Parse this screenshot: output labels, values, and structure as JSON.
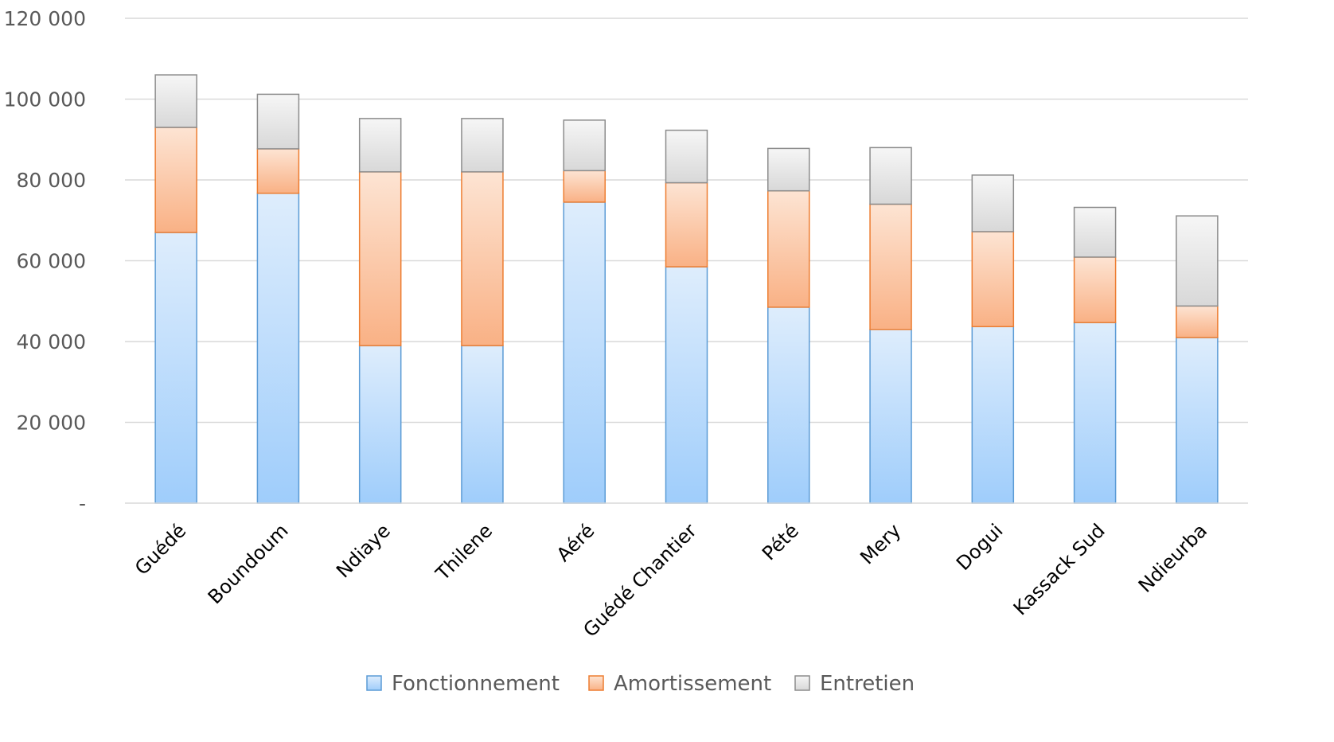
{
  "chart_data": {
    "type": "bar",
    "stacked": true,
    "categories": [
      "Guédé",
      "Boundoum",
      "Ndiaye",
      "Thilene",
      "Aéré",
      "Guédé Chantier",
      "Pété",
      "Mery",
      "Dogui",
      "Kassack Sud",
      "Ndieurba"
    ],
    "series": [
      {
        "name": "Fonctionnement",
        "values": [
          67000,
          76700,
          39000,
          39000,
          74500,
          58500,
          48500,
          43000,
          43700,
          44700,
          41000
        ]
      },
      {
        "name": "Amortissement",
        "values": [
          26000,
          11000,
          43000,
          43000,
          7800,
          20800,
          28800,
          31000,
          23500,
          16200,
          7800
        ]
      },
      {
        "name": "Entretien",
        "values": [
          13000,
          13500,
          13200,
          13200,
          12500,
          13000,
          10500,
          14000,
          14000,
          12300,
          22300
        ]
      }
    ],
    "colors": {
      "Fonctionnement": {
        "top": "#deedfc",
        "bottom": "#9fcdfb",
        "stroke": "#5b9bd5"
      },
      "Amortissement": {
        "top": "#fde4d3",
        "bottom": "#f9b185",
        "stroke": "#ed7d31"
      },
      "Entretien": {
        "top": "#f6f6f6",
        "bottom": "#d8d8d8",
        "stroke": "#8c8c8c"
      }
    },
    "y_ticks": [
      "-",
      "20 000",
      "40 000",
      "60 000",
      "80 000",
      "100 000",
      "120 000"
    ],
    "y_tick_values": [
      0,
      20000,
      40000,
      60000,
      80000,
      100000,
      120000
    ],
    "ylim": [
      0,
      120000
    ],
    "grid": true,
    "legend_position": "bottom",
    "title": "",
    "xlabel": "",
    "ylabel": ""
  }
}
